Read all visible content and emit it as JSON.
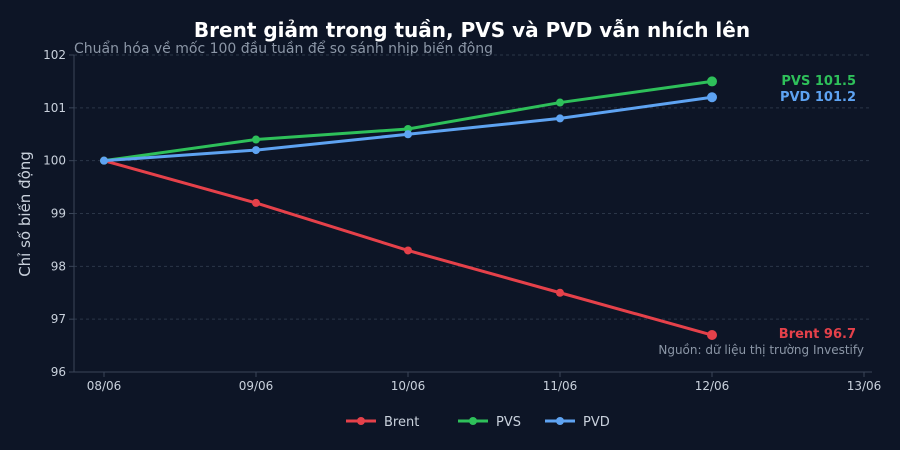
{
  "chart_data": {
    "type": "line",
    "title": "Brent giảm trong tuần, PVS và PVD vẫn nhích lên",
    "subtitle": "Chuẩn hóa về mốc 100 đầu tuần để so sánh nhịp biến động",
    "ylabel": "Chỉ số biến động",
    "xlabel": "",
    "x": [
      "08/06",
      "09/06",
      "10/06",
      "11/06",
      "12/06"
    ],
    "x_ticks": [
      "08/06",
      "09/06",
      "10/06",
      "11/06",
      "12/06",
      "13/06"
    ],
    "ylim": [
      96,
      102
    ],
    "y_ticks": [
      96,
      97,
      98,
      99,
      100,
      101,
      102
    ],
    "grid": true,
    "legend_position": "bottom",
    "series": [
      {
        "name": "Brent",
        "color": "#e5414a",
        "values": [
          100,
          99.2,
          98.3,
          97.5,
          96.7
        ],
        "end_label": "Brent  96.7"
      },
      {
        "name": "PVS",
        "color": "#2ec05a",
        "values": [
          100,
          100.4,
          100.6,
          101.1,
          101.5
        ],
        "end_label": "PVS  101.5"
      },
      {
        "name": "PVD",
        "color": "#5ea3f2",
        "values": [
          100,
          100.2,
          100.5,
          100.8,
          101.2
        ],
        "end_label": "PVD  101.2"
      }
    ],
    "source": "Nguồn: dữ liệu thị trường Investify"
  }
}
